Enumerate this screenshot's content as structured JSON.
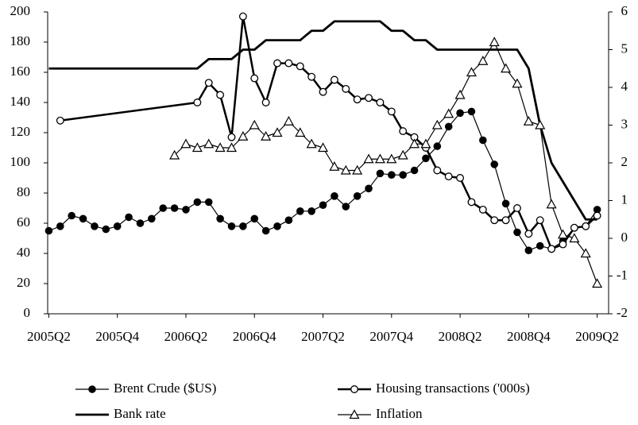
{
  "chart_data": {
    "type": "line",
    "x": [
      0,
      1,
      2,
      3,
      4,
      5,
      6,
      7,
      8,
      9,
      10,
      11,
      12,
      13,
      14,
      15,
      16,
      17,
      18,
      19,
      20,
      21,
      22,
      23,
      24,
      25,
      26,
      27,
      28,
      29,
      30,
      31,
      32,
      33,
      34,
      35,
      36,
      37,
      38,
      39,
      40,
      41,
      42,
      43,
      44,
      45,
      46,
      47,
      48
    ],
    "xlim": [
      -0.1,
      49
    ],
    "xticks": [
      {
        "value": 0,
        "label": "2005Q2"
      },
      {
        "value": 6,
        "label": "2005Q4"
      },
      {
        "value": 12,
        "label": "2006Q2"
      },
      {
        "value": 18,
        "label": "2006Q4"
      },
      {
        "value": 24,
        "label": "2007Q2"
      },
      {
        "value": 30,
        "label": "2007Q4"
      },
      {
        "value": 36,
        "label": "2008Q2"
      },
      {
        "value": 42,
        "label": "2008Q4"
      },
      {
        "value": 48,
        "label": "2009Q2"
      }
    ],
    "ylim": [
      0,
      200
    ],
    "yticks": [
      0,
      20,
      40,
      60,
      80,
      100,
      120,
      140,
      160,
      180,
      200
    ],
    "y2lim": [
      -2,
      6
    ],
    "y2ticks": [
      -2,
      -1,
      0,
      1,
      2,
      3,
      4,
      5,
      6
    ],
    "series": [
      {
        "name": "Brent Crude ($US)",
        "color": "#000000",
        "marker": "filled-circle",
        "line_width": 1.2,
        "values": [
          55,
          58,
          65,
          63,
          58,
          56,
          58,
          64,
          60,
          63,
          70,
          70,
          69,
          74,
          74,
          63,
          58,
          58,
          63,
          55,
          58,
          62,
          68,
          68,
          72,
          78,
          71,
          78,
          83,
          93,
          92,
          92,
          95,
          103,
          111,
          124,
          133,
          134,
          115,
          99,
          73,
          54,
          42,
          45,
          43,
          48,
          57,
          58,
          69
        ]
      },
      {
        "name": "Housing transactions ('000s)",
        "color": "#000000",
        "marker": "open-circle",
        "line_width": 2.5,
        "x": [
          1,
          13,
          14,
          15,
          16,
          17,
          18,
          19,
          20,
          21,
          22,
          23,
          24,
          25,
          26,
          27,
          28,
          29,
          30,
          31,
          32,
          33,
          34,
          35,
          36,
          37,
          38,
          39,
          40,
          41,
          42,
          43,
          44,
          45,
          46,
          47,
          48
        ],
        "values": [
          128,
          140,
          153,
          145,
          117,
          197,
          156,
          140,
          166,
          166,
          164,
          157,
          147,
          155,
          149,
          142,
          143,
          140,
          134,
          121,
          117,
          110,
          95,
          91,
          90,
          74,
          69,
          62,
          62,
          70,
          53,
          62,
          43,
          46,
          57,
          58,
          65
        ]
      },
      {
        "name": "Bank rate",
        "color": "#000000",
        "marker": "none",
        "line_width": 2.8,
        "axis": "y2",
        "values": [
          4.5,
          4.5,
          4.5,
          4.5,
          4.5,
          4.5,
          4.5,
          4.5,
          4.5,
          4.5,
          4.5,
          4.5,
          4.5,
          4.5,
          4.75,
          4.75,
          4.75,
          5.0,
          5.0,
          5.25,
          5.25,
          5.25,
          5.25,
          5.5,
          5.5,
          5.75,
          5.75,
          5.75,
          5.75,
          5.75,
          5.5,
          5.5,
          5.25,
          5.25,
          5.0,
          5.0,
          5.0,
          5.0,
          5.0,
          5.0,
          5.0,
          5.0,
          4.5,
          3.0,
          2.0,
          1.5,
          1.0,
          0.5,
          0.5
        ]
      },
      {
        "name": "Inflation",
        "color": "#000000",
        "marker": "open-triangle",
        "line_width": 1.2,
        "axis": "y2",
        "x": [
          11,
          12,
          13,
          14,
          15,
          16,
          17,
          18,
          19,
          20,
          21,
          22,
          23,
          24,
          25,
          26,
          27,
          28,
          29,
          30,
          31,
          32,
          33,
          34,
          35,
          36,
          37,
          38,
          39,
          40,
          41,
          42,
          43,
          44,
          45,
          46,
          47,
          48
        ],
        "values": [
          2.2,
          2.5,
          2.4,
          2.5,
          2.4,
          2.4,
          2.7,
          3.0,
          2.7,
          2.8,
          3.1,
          2.8,
          2.5,
          2.4,
          1.9,
          1.8,
          1.8,
          2.1,
          2.1,
          2.1,
          2.2,
          2.5,
          2.5,
          3.0,
          3.3,
          3.8,
          4.4,
          4.7,
          5.2,
          4.5,
          4.1,
          3.1,
          3.0,
          0.9,
          0.1,
          0.0,
          -0.4,
          -1.2
        ]
      }
    ]
  }
}
